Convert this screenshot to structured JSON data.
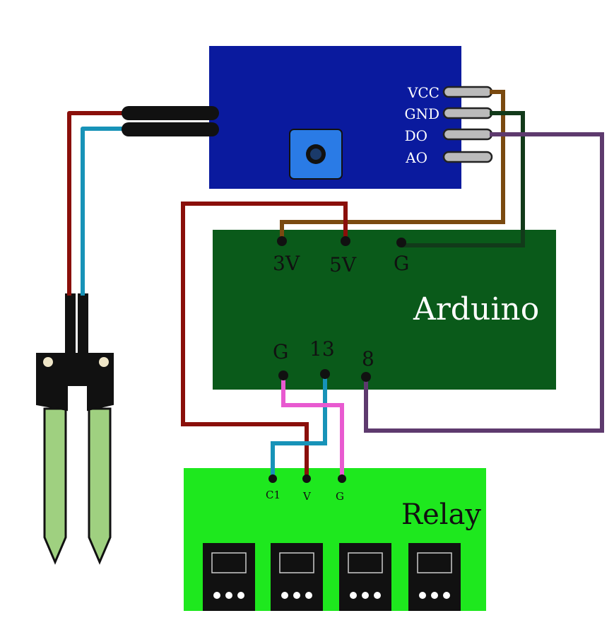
{
  "sensor_module": {
    "pins": [
      "VCC",
      "GND",
      "DO",
      "AO"
    ]
  },
  "arduino": {
    "title": "Arduino",
    "top_pins": [
      "3V",
      "5V",
      "G"
    ],
    "bottom_pins": [
      "G",
      "13",
      "8"
    ]
  },
  "relay": {
    "title": "Relay",
    "pins": [
      "C1",
      "V",
      "G"
    ]
  },
  "colors": {
    "sensor_board": "#0a1a9e",
    "potentiometer": "#2a7be6",
    "arduino_board": "#0a5a1a",
    "relay_board": "#1ee81e",
    "wire_red": "#8a0f0a",
    "wire_blue": "#1793b8",
    "wire_brown": "#7a4a10",
    "wire_darkgreen": "#123a1a",
    "wire_purple": "#5e3a6e",
    "wire_pink": "#e85ad0",
    "probe_green": "#9fd080"
  }
}
